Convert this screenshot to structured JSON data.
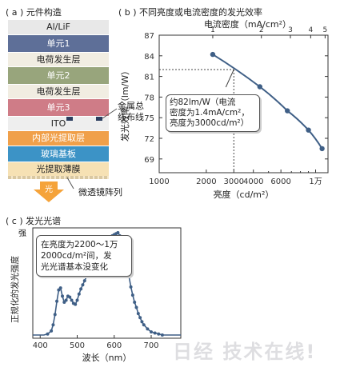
{
  "panel_a": {
    "title": "( a ) 元件构造",
    "layers": [
      {
        "label": "Al/LiF",
        "color": "#e8e8e8",
        "dark": false
      },
      {
        "label": "单元1",
        "color": "#5e6f98",
        "dark": true
      },
      {
        "label": "电荷发生层",
        "color": "#f1ede2",
        "dark": false
      },
      {
        "label": "单元2",
        "color": "#98a57c",
        "dark": true
      },
      {
        "label": "电荷发生层",
        "color": "#f1ede2",
        "dark": false
      },
      {
        "label": "单元3",
        "color": "#cf7c87",
        "dark": true
      },
      {
        "label": "ITO",
        "color": "#eeeeee",
        "dark": false
      },
      {
        "label": "内部光提取层",
        "color": "#f0a04a",
        "dark": true
      },
      {
        "label": "玻璃基板",
        "color": "#3c93c6",
        "dark": true
      },
      {
        "label": "光提取薄膜",
        "color": "#f6e1b4",
        "dark": false
      }
    ],
    "wiring_label": "金属总\n线布线",
    "light_label": "光",
    "microlens_label": "微透镜阵列"
  },
  "panel_b": {
    "title": "( b ) 不同亮度或电流密度的发光效率",
    "annotation": "约82lm/W（电流\n密度为1.4mA/cm²，\n亮度为3000cd/m²）"
  },
  "panel_c": {
    "title": "( c ) 发光光谱",
    "annotation": "在亮度为2200～1万\n2000cd/m²间，发\n光光谱基本没变化"
  },
  "watermark": "日经 技术在线!",
  "chart_data": [
    {
      "type": "line",
      "title": "( b ) 不同亮度或电流密度的发光效率",
      "xlabel": "亮度（cd/m²）",
      "x_scale": "log",
      "xlim": [
        1000,
        12000
      ],
      "x_ticks": [
        1000,
        2000,
        3000,
        4000,
        6000,
        10000
      ],
      "x_tick_labels": [
        "1000",
        "2000",
        "3000",
        "4000",
        "6000",
        "1万"
      ],
      "ylabel": "发光效率（lm/W）",
      "ylim": [
        67,
        87
      ],
      "y_ticks": [
        69,
        72,
        75,
        78,
        81,
        84,
        87
      ],
      "secondary_xlabel": "电流密度（mA/cm²）",
      "secondary_ticks": [
        1,
        2,
        3,
        4,
        5
      ],
      "secondary_tick_brightness": [
        2200,
        4500,
        6900,
        9300,
        11500
      ],
      "series": [
        {
          "x": [
            2200,
            4400,
            6600,
            9000,
            11000
          ],
          "y": [
            84.2,
            79.5,
            76.0,
            73.2,
            70.5
          ]
        }
      ],
      "highlight_point": {
        "x": 3000,
        "y": 82
      }
    },
    {
      "type": "line",
      "title": "( c ) 发光光谱",
      "xlabel": "波长（nm）",
      "xlim": [
        380,
        780
      ],
      "x_ticks": [
        400,
        500,
        600,
        700
      ],
      "ylabel": "正规化的发光强度",
      "y_top_label": "强",
      "series": [
        {
          "x": [
            380,
            390,
            400,
            410,
            420,
            430,
            435,
            440,
            445,
            450,
            455,
            460,
            465,
            470,
            475,
            480,
            485,
            490,
            495,
            500,
            505,
            510,
            515,
            520,
            525,
            530,
            535,
            540,
            545,
            550,
            555,
            560,
            565,
            570,
            575,
            580,
            585,
            590,
            595,
            600,
            605,
            610,
            615,
            620,
            625,
            630,
            635,
            640,
            645,
            650,
            655,
            660,
            665,
            670,
            675,
            680,
            690,
            700,
            710,
            720,
            730,
            740,
            750,
            760,
            770,
            780
          ],
          "y": [
            0,
            0,
            0,
            0,
            0.01,
            0.04,
            0.1,
            0.2,
            0.33,
            0.44,
            0.46,
            0.38,
            0.32,
            0.34,
            0.38,
            0.37,
            0.34,
            0.31,
            0.3,
            0.34,
            0.4,
            0.45,
            0.49,
            0.53,
            0.57,
            0.61,
            0.64,
            0.66,
            0.67,
            0.67,
            0.68,
            0.7,
            0.73,
            0.78,
            0.84,
            0.89,
            0.93,
            0.95,
            0.97,
            0.98,
            0.99,
            1.0,
            0.97,
            0.9,
            0.82,
            0.73,
            0.66,
            0.57,
            0.47,
            0.39,
            0.32,
            0.27,
            0.21,
            0.17,
            0.13,
            0.1,
            0.06,
            0.03,
            0.02,
            0.01,
            0.0,
            0,
            0,
            0,
            0,
            0
          ]
        }
      ]
    }
  ]
}
